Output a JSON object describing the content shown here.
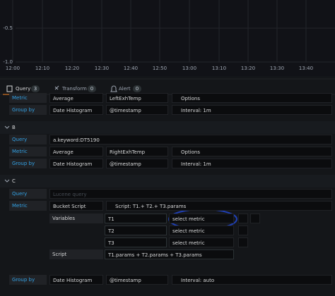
{
  "graph": {
    "y_labels": [
      "-0.5",
      "-1.0"
    ],
    "x_labels": [
      "12:00",
      "12:10",
      "12:20",
      "12:30",
      "12:40",
      "12:50",
      "13:00",
      "13:10",
      "13:20",
      "13:30",
      "13:40"
    ]
  },
  "tabs": [
    {
      "label": "Query",
      "count": 3
    },
    {
      "label": "Transform",
      "count": 0
    },
    {
      "label": "Alert",
      "count": 0
    }
  ],
  "query_a": {
    "metric": {
      "label": "Metric",
      "fields": [
        "Average",
        "LeftExhTemp",
        "Options"
      ]
    },
    "group_by": {
      "label": "Group by",
      "fields": [
        "Date Histogram",
        "@timestamp",
        "Interval: 1m"
      ]
    }
  },
  "query_b": {
    "name": "B",
    "query_label": "Query",
    "query": "a.keyword:DT5190",
    "metric": {
      "label": "Metric",
      "fields": [
        "Average",
        "RightExhTemp",
        "Options"
      ]
    },
    "group_by": {
      "label": "Group by",
      "fields": [
        "Date Histogram",
        "@timestamp",
        "Interval: 1m"
      ]
    }
  },
  "query_c": {
    "name": "C",
    "query_label": "Query",
    "query_placeholder": "Lucene query",
    "metric": {
      "label": "Metric",
      "fields": [
        "Bucket Script",
        "Script: T1.+ T2.+ T3.params"
      ]
    },
    "variables_label": "Variables",
    "variables": [
      {
        "name": "T1",
        "metric": "select metric"
      },
      {
        "name": "T2",
        "metric": "select metric"
      },
      {
        "name": "T3",
        "metric": "select metric"
      }
    ],
    "script_label": "Script",
    "script": "T1.params + T2.params + T3.params",
    "group_by": {
      "label": "Group by",
      "fields": [
        "Date Histogram",
        "@timestamp",
        "Interval: auto"
      ]
    }
  }
}
